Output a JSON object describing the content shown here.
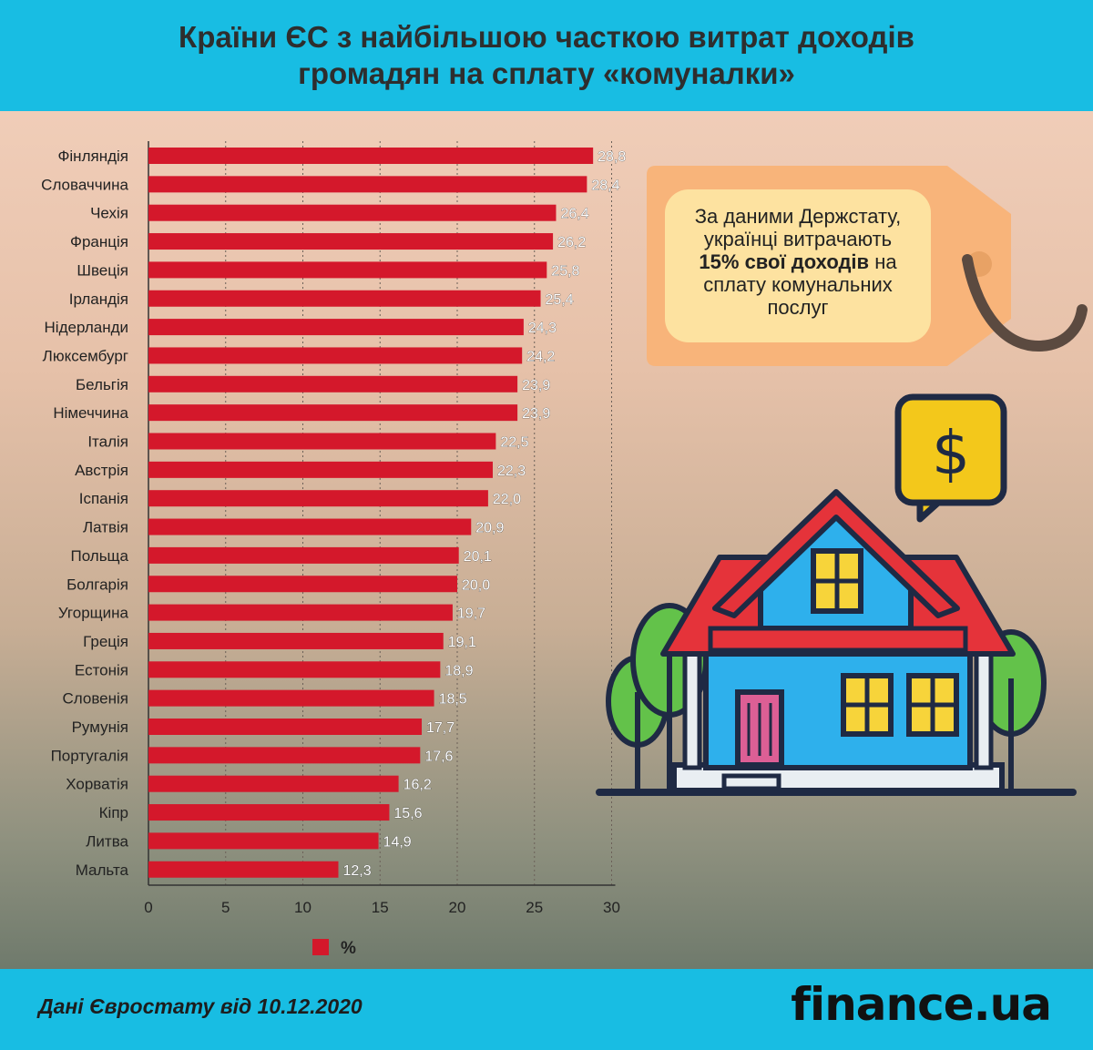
{
  "header": {
    "title_line1": "Країни ЄС з найбільшою часткою витрат доходів",
    "title_line2": "громадян на сплату «комуналки»"
  },
  "chart_data": {
    "type": "bar",
    "orientation": "horizontal",
    "title": "Країни ЄС з найбільшою часткою витрат доходів громадян на сплату «комуналки»",
    "categories": [
      "Фінляндія",
      "Словаччина",
      "Чехія",
      "Франція",
      "Швеція",
      "Ірландія",
      "Нідерланди",
      "Люксембург",
      "Бельгія",
      "Німеччина",
      "Італія",
      "Австрія",
      "Іспанія",
      "Латвія",
      "Польща",
      "Болгарія",
      "Угорщина",
      "Греція",
      "Естонія",
      "Словенія",
      "Румунія",
      "Португалія",
      "Хорватія",
      "Кіпр",
      "Литва",
      "Мальта"
    ],
    "values": [
      28.8,
      28.4,
      26.4,
      26.2,
      25.8,
      25.4,
      24.3,
      24.2,
      23.9,
      23.9,
      22.5,
      22.3,
      22.0,
      20.9,
      20.1,
      20.0,
      19.7,
      19.1,
      18.9,
      18.5,
      17.7,
      17.6,
      16.2,
      15.6,
      14.9,
      12.3
    ],
    "value_labels": [
      "28,8",
      "28,4",
      "26,4",
      "26,2",
      "25,8",
      "25,4",
      "24,3",
      "24,2",
      "23,9",
      "23,9",
      "22,5",
      "22,3",
      "22,0",
      "20,9",
      "20,1",
      "20,0",
      "19,7",
      "19,1",
      "18,9",
      "18,5",
      "17,7",
      "17,6",
      "16,2",
      "15,6",
      "14,9",
      "12,3"
    ],
    "xlim": [
      0,
      30
    ],
    "xticks": [
      "0",
      "5",
      "10",
      "15",
      "20",
      "25",
      "30"
    ],
    "grid": "vertical dotted",
    "legend": "%",
    "legend_position": "bottom-center",
    "bar_color": "#d4182b"
  },
  "callout": {
    "line1": "За даними Держстату,",
    "line2": "українці витрачають",
    "highlight": "15% свої доходів",
    "line3_rest": " на",
    "line4": "сплату комунальних",
    "line5": "послуг"
  },
  "footer": {
    "source": "Дані Євростату від 10.12.2020",
    "brand": "finance.ua"
  },
  "colors": {
    "header_bg": "#18bde3",
    "bar": "#d4182b",
    "tag": "#f8b47a"
  }
}
